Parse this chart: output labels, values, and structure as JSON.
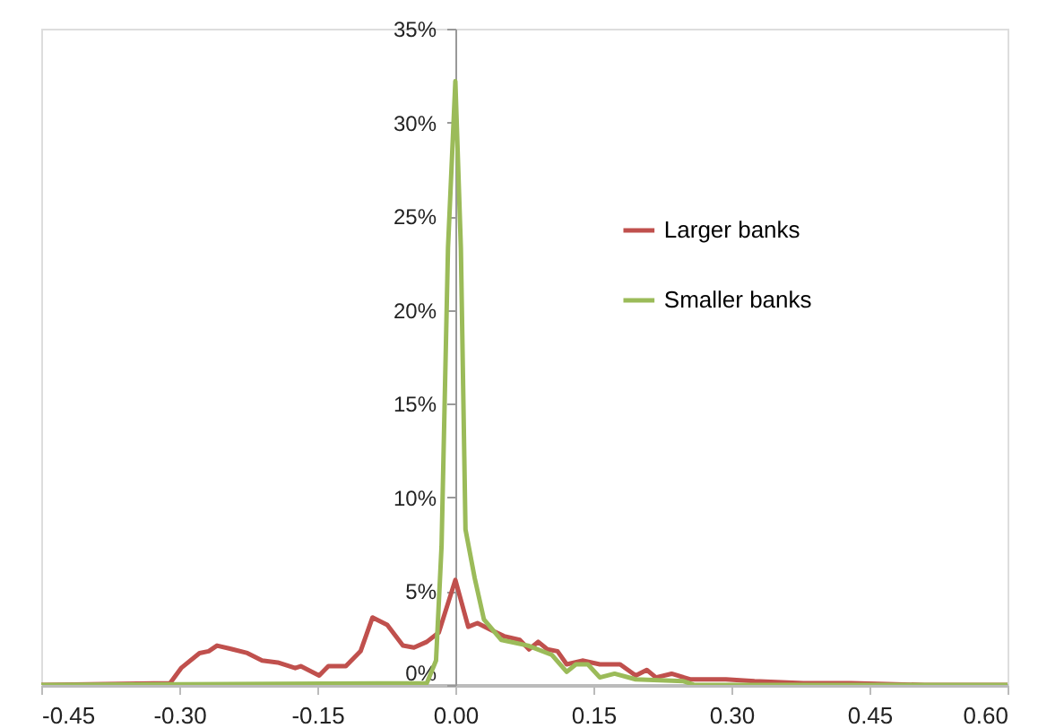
{
  "chart_data": {
    "type": "line",
    "legend": "right",
    "grid": false,
    "marker": "none",
    "line_style": "solid",
    "xlim": [
      -0.45,
      0.6
    ],
    "xticks": [
      {
        "value": -0.45,
        "label": "-0.45"
      },
      {
        "value": -0.3,
        "label": "-0.30"
      },
      {
        "value": -0.15,
        "label": "-0.15"
      },
      {
        "value": 0,
        "label": "0.00"
      },
      {
        "value": 0.15,
        "label": "0.15"
      },
      {
        "value": 0.3,
        "label": "0.30"
      },
      {
        "value": 0.45,
        "label": "0.45"
      },
      {
        "value": 0.6,
        "label": "0.60"
      }
    ],
    "ylim": [
      0,
      35
    ],
    "yticks": [
      {
        "value": 0,
        "label": "0%"
      },
      {
        "value": 5,
        "label": "5%"
      },
      {
        "value": 10,
        "label": "10%"
      },
      {
        "value": 15,
        "label": "15%"
      },
      {
        "value": 20,
        "label": "20%"
      },
      {
        "value": 25,
        "label": "25%"
      },
      {
        "value": 30,
        "label": "30%"
      },
      {
        "value": 35,
        "label": "35%"
      }
    ],
    "series": [
      {
        "name": "Larger banks",
        "color": "#c0504d",
        "x": [
          -0.45,
          -0.31,
          -0.298,
          -0.278,
          -0.268,
          -0.259,
          -0.242,
          -0.226,
          -0.21,
          -0.193,
          -0.174,
          -0.168,
          -0.148,
          -0.138,
          -0.119,
          -0.103,
          -0.09,
          -0.074,
          -0.057,
          -0.045,
          -0.031,
          -0.018,
          0.0,
          0.014,
          0.024,
          0.04,
          0.053,
          0.07,
          0.08,
          0.09,
          0.1,
          0.111,
          0.121,
          0.138,
          0.157,
          0.179,
          0.196,
          0.208,
          0.218,
          0.235,
          0.255,
          0.294,
          0.325,
          0.378,
          0.43,
          0.51,
          0.6
        ],
        "values": [
          0,
          0.1,
          0.9,
          1.7,
          1.8,
          2.1,
          1.9,
          1.7,
          1.3,
          1.2,
          0.9,
          1.0,
          0.5,
          1.0,
          1.0,
          1.8,
          3.6,
          3.2,
          2.1,
          2.0,
          2.3,
          2.8,
          5.6,
          3.1,
          3.3,
          2.9,
          2.6,
          2.4,
          1.9,
          2.3,
          1.9,
          1.8,
          1.1,
          1.3,
          1.1,
          1.1,
          0.5,
          0.8,
          0.4,
          0.6,
          0.3,
          0.3,
          0.2,
          0.1,
          0.1,
          0,
          0
        ]
      },
      {
        "name": "Smaller banks",
        "color": "#9bbb59",
        "x": [
          -0.45,
          -0.031,
          -0.021,
          -0.015,
          -0.008,
          0.0,
          0.006,
          0.011,
          0.021,
          0.031,
          0.05,
          0.079,
          0.105,
          0.121,
          0.131,
          0.144,
          0.157,
          0.173,
          0.196,
          0.248,
          0.26,
          0.6
        ],
        "values": [
          0,
          0.1,
          1.3,
          7.4,
          23.3,
          32.2,
          23.3,
          8.3,
          5.7,
          3.5,
          2.4,
          2.1,
          1.6,
          0.7,
          1.1,
          1.1,
          0.4,
          0.6,
          0.3,
          0.2,
          0,
          0
        ]
      }
    ]
  }
}
